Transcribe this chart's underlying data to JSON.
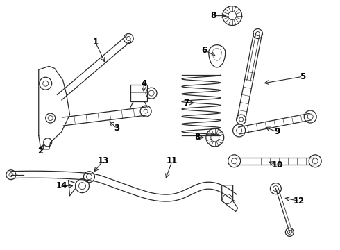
{
  "background_color": "#ffffff",
  "line_color": "#2a2a2a",
  "fig_width": 4.9,
  "fig_height": 3.6,
  "dpi": 100
}
